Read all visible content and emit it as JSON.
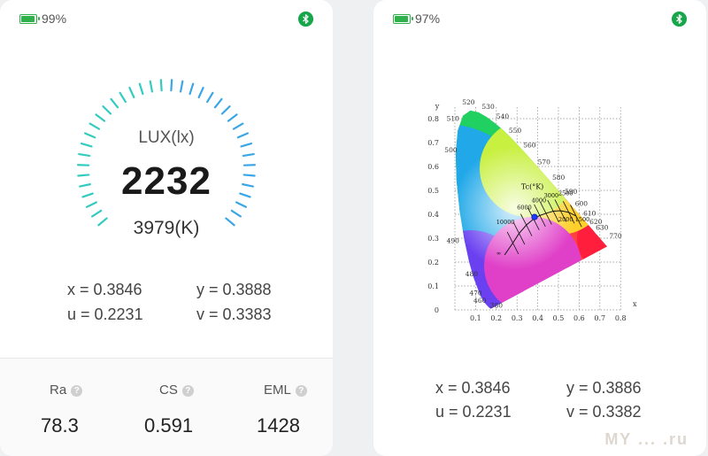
{
  "left": {
    "status": {
      "battery_text": "99%",
      "battery_level": 0.99
    },
    "gauge": {
      "label": "LUX(lx)",
      "lux": "2232",
      "cct": "3979(K)"
    },
    "coords": {
      "x": "x = 0.3846",
      "y": "y = 0.3888",
      "u": "u = 0.2231",
      "v": "v = 0.3383"
    },
    "metrics": [
      {
        "label": "Ra",
        "value": "78.3"
      },
      {
        "label": "CS",
        "value": "0.591"
      },
      {
        "label": "EML",
        "value": "1428"
      }
    ],
    "help_glyph": "?"
  },
  "right": {
    "status": {
      "battery_text": "97%",
      "battery_level": 0.97
    },
    "coords": {
      "x": "x = 0.3846",
      "y": "y = 0.3886",
      "u": "u = 0.2231",
      "v": "v = 0.3382"
    },
    "chart": {
      "y_axis_label": "y",
      "x_axis_label": "x",
      "y_ticks": [
        "0.8",
        "0.7",
        "0.6",
        "0.5",
        "0.4",
        "0.3",
        "0.2",
        "0.1",
        "0"
      ],
      "x_ticks": [
        "0.1",
        "0.2",
        "0.3",
        "0.4",
        "0.5",
        "0.6",
        "0.7",
        "0.8"
      ],
      "wavelengths": [
        "520",
        "530",
        "540",
        "510",
        "550",
        "560",
        "570",
        "500",
        "580",
        "590",
        "600",
        "610",
        "620",
        "630",
        "770",
        "490",
        "480",
        "470",
        "460",
        "380"
      ],
      "cct_title": "Tc(°K)",
      "cct_marks": [
        "10000",
        "6000",
        "4000",
        "3000",
        "2500",
        "2000",
        "1500",
        "∞"
      ],
      "point": {
        "x": 0.3846,
        "y": 0.3886
      }
    }
  },
  "watermark": "MY ... .ru"
}
